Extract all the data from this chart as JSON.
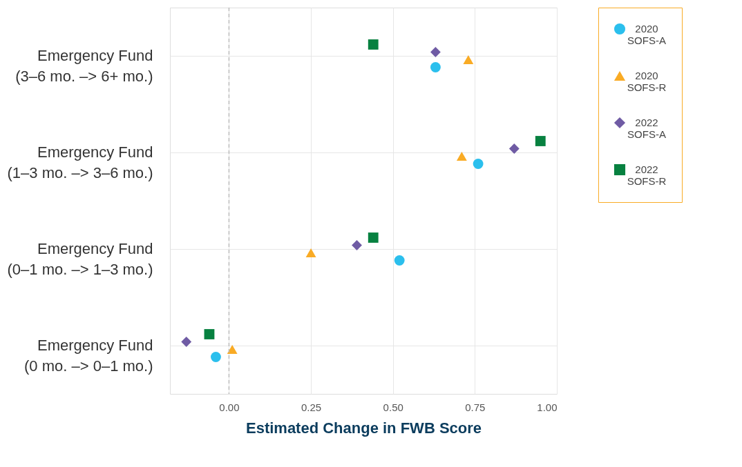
{
  "chart_data": {
    "type": "scatter",
    "xlabel": "Estimated Change in FWB Score",
    "categories": [
      "Emergency Fund\n(3–6 mo. –> 6+ mo.)",
      "Emergency Fund\n(1–3 mo. –> 3–6 mo.)",
      "Emergency Fund\n(0–1 mo. –> 1–3 mo.)",
      "Emergency Fund\n(0 mo. –> 0–1 mo.)"
    ],
    "orientation": "horizontal",
    "series": [
      {
        "name": "2020 SOFS-A",
        "color": "#2bbfed",
        "marker": "circle",
        "values": [
          0.63,
          0.76,
          0.52,
          -0.04
        ]
      },
      {
        "name": "2020 SOFS-R",
        "color": "#f9ab25",
        "marker": "triangle",
        "values": [
          0.73,
          0.71,
          0.25,
          0.01
        ]
      },
      {
        "name": "2022 SOFS-A",
        "color": "#6f5ba4",
        "marker": "diamond",
        "values": [
          0.63,
          0.87,
          0.39,
          -0.13
        ]
      },
      {
        "name": "2022 SOFS-R",
        "color": "#078140",
        "marker": "square",
        "values": [
          0.44,
          0.95,
          0.44,
          -0.06
        ]
      }
    ],
    "xlim": [
      -0.18,
      1.0
    ],
    "xticks": [
      {
        "value": 0,
        "label": "0.00"
      },
      {
        "value": 0.25,
        "label": "0.25"
      },
      {
        "value": 0.5,
        "label": "0.50"
      },
      {
        "value": 0.75,
        "label": "0.75"
      },
      {
        "value": 1.0,
        "label": "1.00"
      }
    ],
    "ref_lines": [
      {
        "axis": "x",
        "value": 0,
        "color": "#bbbbbb",
        "line_style": "dashed"
      }
    ],
    "grid": true,
    "legend": "right"
  }
}
